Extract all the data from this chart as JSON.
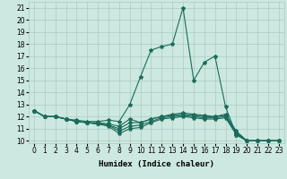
{
  "xlabel": "Humidex (Indice chaleur)",
  "background_color": "#cce8e0",
  "grid_color": "#aaccbf",
  "line_color": "#1a6b5a",
  "xlim": [
    -0.5,
    23.5
  ],
  "ylim": [
    9.8,
    21.5
  ],
  "xticks": [
    0,
    1,
    2,
    3,
    4,
    5,
    6,
    7,
    8,
    9,
    10,
    11,
    12,
    13,
    14,
    15,
    16,
    17,
    18,
    19,
    20,
    21,
    22,
    23
  ],
  "yticks": [
    10,
    11,
    12,
    13,
    14,
    15,
    16,
    17,
    18,
    19,
    20,
    21
  ],
  "series": [
    [
      12.5,
      12.0,
      12.0,
      11.8,
      11.7,
      11.6,
      11.6,
      11.7,
      11.6,
      13.0,
      15.3,
      17.5,
      17.8,
      18.0,
      21.0,
      15.0,
      16.5,
      17.0,
      12.8,
      10.5,
      10.0,
      10.0,
      10.0,
      10.0
    ],
    [
      12.5,
      12.0,
      12.0,
      11.8,
      11.6,
      11.5,
      11.5,
      11.4,
      11.2,
      11.8,
      11.5,
      11.8,
      12.0,
      12.2,
      12.3,
      12.2,
      12.1,
      12.0,
      12.2,
      10.8,
      10.0,
      10.0,
      10.0,
      10.0
    ],
    [
      12.5,
      12.0,
      12.0,
      11.8,
      11.6,
      11.5,
      11.4,
      11.3,
      11.0,
      11.5,
      11.5,
      11.8,
      12.0,
      12.1,
      12.2,
      12.1,
      12.0,
      12.0,
      12.1,
      10.7,
      10.0,
      10.0,
      10.0,
      10.0
    ],
    [
      12.5,
      12.0,
      12.0,
      11.8,
      11.6,
      11.5,
      11.4,
      11.3,
      10.8,
      11.2,
      11.3,
      11.6,
      11.9,
      12.0,
      12.1,
      12.0,
      11.9,
      11.9,
      12.0,
      10.6,
      10.0,
      10.0,
      10.0,
      10.0
    ],
    [
      12.5,
      12.0,
      12.0,
      11.8,
      11.6,
      11.5,
      11.4,
      11.2,
      10.6,
      11.0,
      11.1,
      11.5,
      11.8,
      11.9,
      12.0,
      11.9,
      11.8,
      11.8,
      11.9,
      10.5,
      10.0,
      10.0,
      10.0,
      10.0
    ]
  ],
  "marker": "*",
  "markersize": 3,
  "linewidth": 0.8,
  "tick_fontsize": 5.5,
  "label_fontsize": 6.5
}
